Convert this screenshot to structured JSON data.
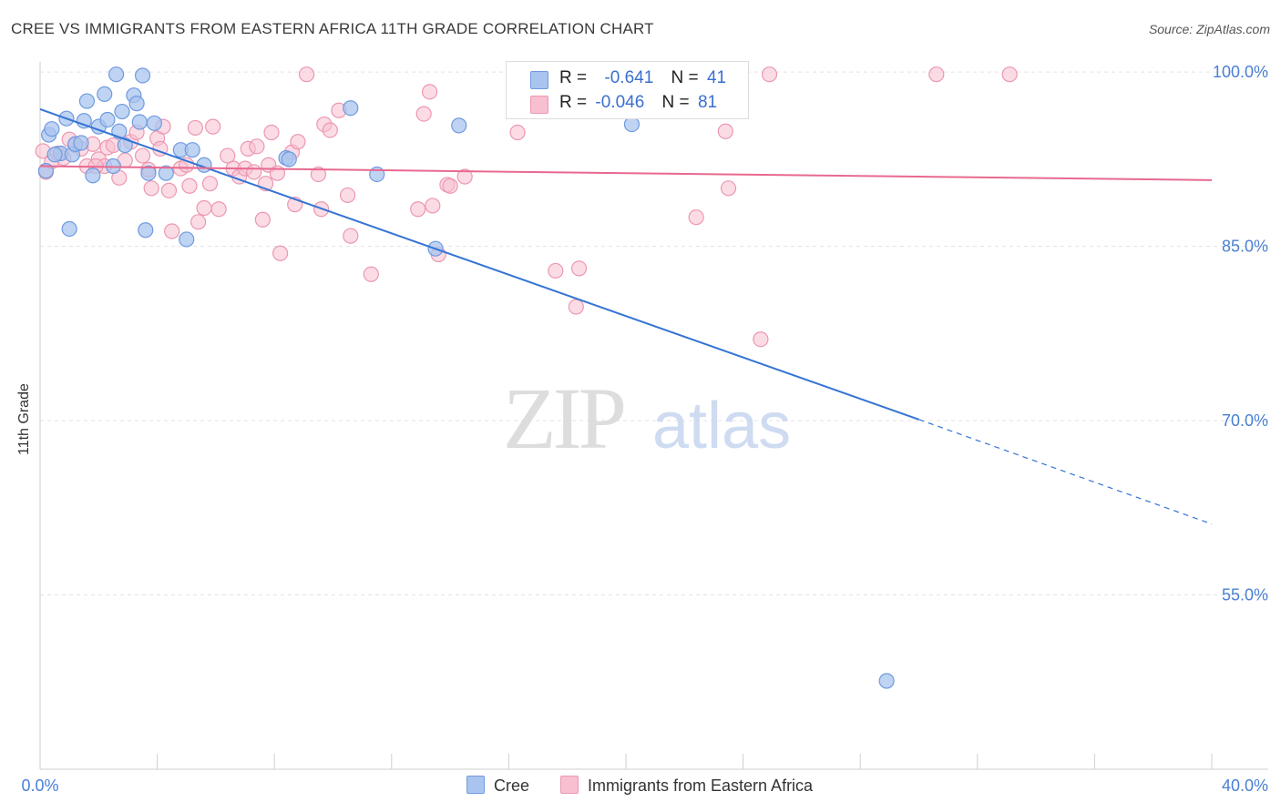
{
  "title": "CREE VS IMMIGRANTS FROM EASTERN AFRICA 11TH GRADE CORRELATION CHART",
  "source": "Source: ZipAtlas.com",
  "watermark": {
    "zip": "ZIP",
    "atlas": "atlas"
  },
  "legend_top": {
    "rows": [
      {
        "r_label": "R =",
        "r_value": "-0.641",
        "n_label": "N =",
        "n_value": "41"
      },
      {
        "r_label": "R =",
        "r_value": "-0.046",
        "n_label": "N =",
        "n_value": "81"
      }
    ]
  },
  "colors": {
    "cree_fill": "#a9c4ee",
    "cree_stroke": "#6f9be0",
    "cree_line": "#3474d4",
    "imm_fill": "#f7bfd0",
    "imm_stroke": "#ec97b1",
    "imm_line": "#e8698f",
    "tick_label": "#4a7fd4",
    "grid": "#e3e3e3"
  },
  "chart_data": {
    "type": "scatter",
    "xlabel": "",
    "ylabel": "11th Grade",
    "xlim": [
      0,
      40
    ],
    "ylim": [
      40,
      101.5
    ],
    "x_tick_labels": [
      "0.0%",
      "40.0%"
    ],
    "y_ticks": [
      100,
      85,
      70,
      55
    ],
    "y_tick_labels": [
      "100.0%",
      "85.0%",
      "70.0%",
      "55.0%"
    ],
    "grid": true,
    "legend_position": "bottom",
    "series": [
      {
        "name": "Cree",
        "points": [
          [
            0.3,
            94.6
          ],
          [
            0.4,
            95.1
          ],
          [
            0.7,
            93.0
          ],
          [
            0.9,
            96.0
          ],
          [
            1.1,
            92.9
          ],
          [
            1.2,
            93.8
          ],
          [
            1.0,
            86.5
          ],
          [
            1.6,
            97.5
          ],
          [
            1.5,
            95.8
          ],
          [
            1.8,
            91.1
          ],
          [
            2.0,
            95.3
          ],
          [
            2.2,
            98.1
          ],
          [
            2.3,
            95.9
          ],
          [
            2.5,
            91.9
          ],
          [
            2.6,
            99.8
          ],
          [
            2.7,
            94.9
          ],
          [
            2.8,
            96.6
          ],
          [
            2.9,
            93.7
          ],
          [
            3.2,
            98.0
          ],
          [
            3.3,
            97.3
          ],
          [
            3.4,
            95.7
          ],
          [
            3.5,
            99.7
          ],
          [
            3.6,
            86.4
          ],
          [
            3.7,
            91.3
          ],
          [
            3.9,
            95.6
          ],
          [
            4.3,
            91.3
          ],
          [
            4.8,
            93.3
          ],
          [
            5.0,
            85.6
          ],
          [
            5.2,
            93.3
          ],
          [
            5.6,
            92.0
          ],
          [
            8.4,
            92.6
          ],
          [
            8.5,
            92.5
          ],
          [
            10.6,
            96.9
          ],
          [
            11.5,
            91.2
          ],
          [
            13.5,
            84.8
          ],
          [
            14.3,
            95.4
          ],
          [
            20.2,
            95.5
          ],
          [
            28.9,
            47.6
          ],
          [
            0.2,
            91.5
          ],
          [
            0.5,
            92.9
          ],
          [
            1.4,
            93.9
          ]
        ]
      },
      {
        "name": "Immigrants from Eastern Africa",
        "points": [
          [
            0.1,
            93.2
          ],
          [
            0.2,
            91.4
          ],
          [
            0.4,
            92.3
          ],
          [
            0.6,
            93.0
          ],
          [
            0.8,
            92.6
          ],
          [
            1.0,
            94.2
          ],
          [
            1.2,
            93.7
          ],
          [
            1.4,
            93.4
          ],
          [
            1.6,
            91.9
          ],
          [
            1.8,
            93.8
          ],
          [
            2.0,
            92.5
          ],
          [
            2.2,
            91.9
          ],
          [
            2.3,
            93.5
          ],
          [
            2.5,
            93.7
          ],
          [
            2.7,
            90.9
          ],
          [
            2.9,
            92.4
          ],
          [
            3.1,
            94.0
          ],
          [
            3.3,
            94.8
          ],
          [
            3.5,
            92.8
          ],
          [
            3.7,
            91.6
          ],
          [
            3.8,
            90.0
          ],
          [
            4.0,
            94.3
          ],
          [
            4.1,
            93.4
          ],
          [
            4.2,
            95.3
          ],
          [
            4.4,
            89.8
          ],
          [
            4.5,
            86.3
          ],
          [
            4.8,
            91.7
          ],
          [
            5.0,
            92.0
          ],
          [
            5.1,
            90.2
          ],
          [
            5.3,
            95.2
          ],
          [
            5.4,
            87.1
          ],
          [
            5.6,
            88.3
          ],
          [
            5.8,
            90.4
          ],
          [
            5.9,
            95.3
          ],
          [
            6.1,
            88.2
          ],
          [
            6.4,
            92.8
          ],
          [
            6.6,
            91.7
          ],
          [
            6.8,
            91.0
          ],
          [
            7.0,
            91.7
          ],
          [
            7.1,
            93.4
          ],
          [
            7.3,
            91.4
          ],
          [
            7.4,
            93.6
          ],
          [
            7.6,
            87.3
          ],
          [
            7.7,
            90.4
          ],
          [
            7.8,
            92.0
          ],
          [
            7.9,
            94.8
          ],
          [
            8.1,
            91.3
          ],
          [
            8.2,
            84.4
          ],
          [
            8.6,
            93.1
          ],
          [
            8.7,
            88.6
          ],
          [
            8.8,
            94.0
          ],
          [
            9.1,
            99.8
          ],
          [
            9.5,
            91.2
          ],
          [
            9.6,
            88.2
          ],
          [
            9.7,
            95.5
          ],
          [
            9.9,
            95.0
          ],
          [
            10.2,
            96.7
          ],
          [
            10.5,
            89.4
          ],
          [
            10.6,
            85.9
          ],
          [
            11.3,
            82.6
          ],
          [
            12.9,
            88.2
          ],
          [
            13.1,
            96.4
          ],
          [
            13.3,
            98.3
          ],
          [
            13.4,
            88.5
          ],
          [
            13.9,
            90.3
          ],
          [
            14.0,
            90.2
          ],
          [
            14.5,
            91.0
          ],
          [
            16.3,
            94.8
          ],
          [
            17.6,
            82.9
          ],
          [
            18.3,
            79.8
          ],
          [
            18.4,
            83.1
          ],
          [
            18.8,
            99.9
          ],
          [
            22.4,
            87.5
          ],
          [
            23.4,
            94.9
          ],
          [
            23.5,
            90.0
          ],
          [
            24.6,
            77.0
          ],
          [
            24.9,
            99.8
          ],
          [
            30.6,
            99.8
          ],
          [
            33.1,
            99.8
          ],
          [
            13.6,
            84.3
          ],
          [
            1.9,
            91.9
          ]
        ]
      }
    ],
    "trend_lines": [
      {
        "series": "Cree",
        "x0": 0,
        "y0": 96.8,
        "x1": 30.0,
        "y1": 70.1,
        "dash_to_x": 40,
        "dash_to_y": 61.1
      },
      {
        "series": "Immigrants from Eastern Africa",
        "x0": 0,
        "y0": 91.9,
        "x1": 40,
        "y1": 90.7
      }
    ]
  }
}
